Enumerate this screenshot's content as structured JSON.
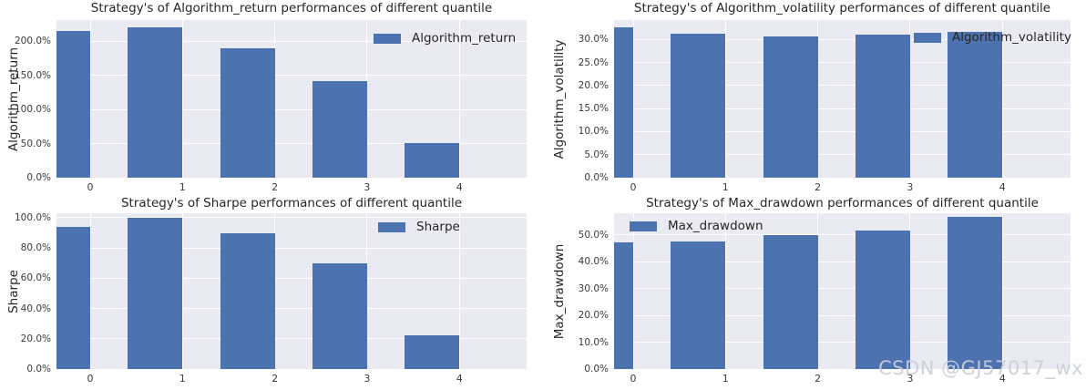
{
  "colors": {
    "bar": "#4c72b0",
    "plot_bg": "#eaeaf2",
    "grid": "#ffffff",
    "title_text": "#262626",
    "tick_text": "#3a3a3a",
    "watermark": "#cbced8"
  },
  "watermark": {
    "text": "CSDN @GJ57017_wx"
  },
  "chart_data": [
    {
      "type": "bar",
      "title": "Strategy's of Algorithm_return performances of different quantile",
      "ylabel": "Algorithm_return",
      "xlabel": "",
      "legend_label": "Algorithm_return",
      "legend_position": "upper-right",
      "grid": true,
      "categories": [
        "0",
        "1",
        "2",
        "3",
        "4"
      ],
      "values_pct": [
        215,
        220.5,
        190,
        142,
        51
      ],
      "yticks_pct": [
        0,
        50,
        100,
        150,
        200
      ],
      "ytick_labels": [
        "0.0%",
        "50.0%",
        "100.0%",
        "150.0%",
        "200.0%"
      ],
      "ylim_pct": [
        0,
        231
      ]
    },
    {
      "type": "bar",
      "title": "Strategy's of Algorithm_volatility performances of different quantile",
      "ylabel": "Algorithm_volatility",
      "xlabel": "",
      "legend_label": "Algorithm_volatility",
      "legend_position": "upper-right",
      "grid": true,
      "categories": [
        "0",
        "1",
        "2",
        "3",
        "4"
      ],
      "values_pct": [
        32.6,
        31.2,
        30.7,
        31.1,
        31.6
      ],
      "yticks_pct": [
        0,
        5,
        10,
        15,
        20,
        25,
        30
      ],
      "ytick_labels": [
        "0.0%",
        "5.0%",
        "10.0%",
        "15.0%",
        "20.0%",
        "25.0%",
        "30.0%"
      ],
      "ylim_pct": [
        0,
        34.2
      ]
    },
    {
      "type": "bar",
      "title": "Strategy's of Sharpe performances of different quantile",
      "ylabel": "Sharpe",
      "xlabel": "",
      "legend_label": "Sharpe",
      "legend_position": "upper-right",
      "grid": true,
      "categories": [
        "0",
        "1",
        "2",
        "3",
        "4"
      ],
      "values_pct": [
        94,
        99.7,
        90,
        70,
        22
      ],
      "yticks_pct": [
        0,
        20,
        40,
        60,
        80,
        100
      ],
      "ytick_labels": [
        "0.0%",
        "20.0%",
        "40.0%",
        "60.0%",
        "80.0%",
        "100.0%"
      ],
      "ylim_pct": [
        0,
        103
      ]
    },
    {
      "type": "bar",
      "title": "Strategy's of Max_drawdown performances of different quantile",
      "ylabel": "Max_drawdown",
      "xlabel": "",
      "legend_label": "Max_drawdown",
      "legend_position": "upper-left",
      "grid": true,
      "categories": [
        "0",
        "1",
        "2",
        "3",
        "4"
      ],
      "values_pct": [
        47,
        47.6,
        50,
        51.5,
        56.7
      ],
      "yticks_pct": [
        0,
        10,
        20,
        30,
        40,
        50
      ],
      "ytick_labels": [
        "0.0%",
        "10.0%",
        "20.0%",
        "30.0%",
        "40.0%",
        "50.0%"
      ],
      "ylim_pct": [
        0,
        58
      ]
    }
  ]
}
